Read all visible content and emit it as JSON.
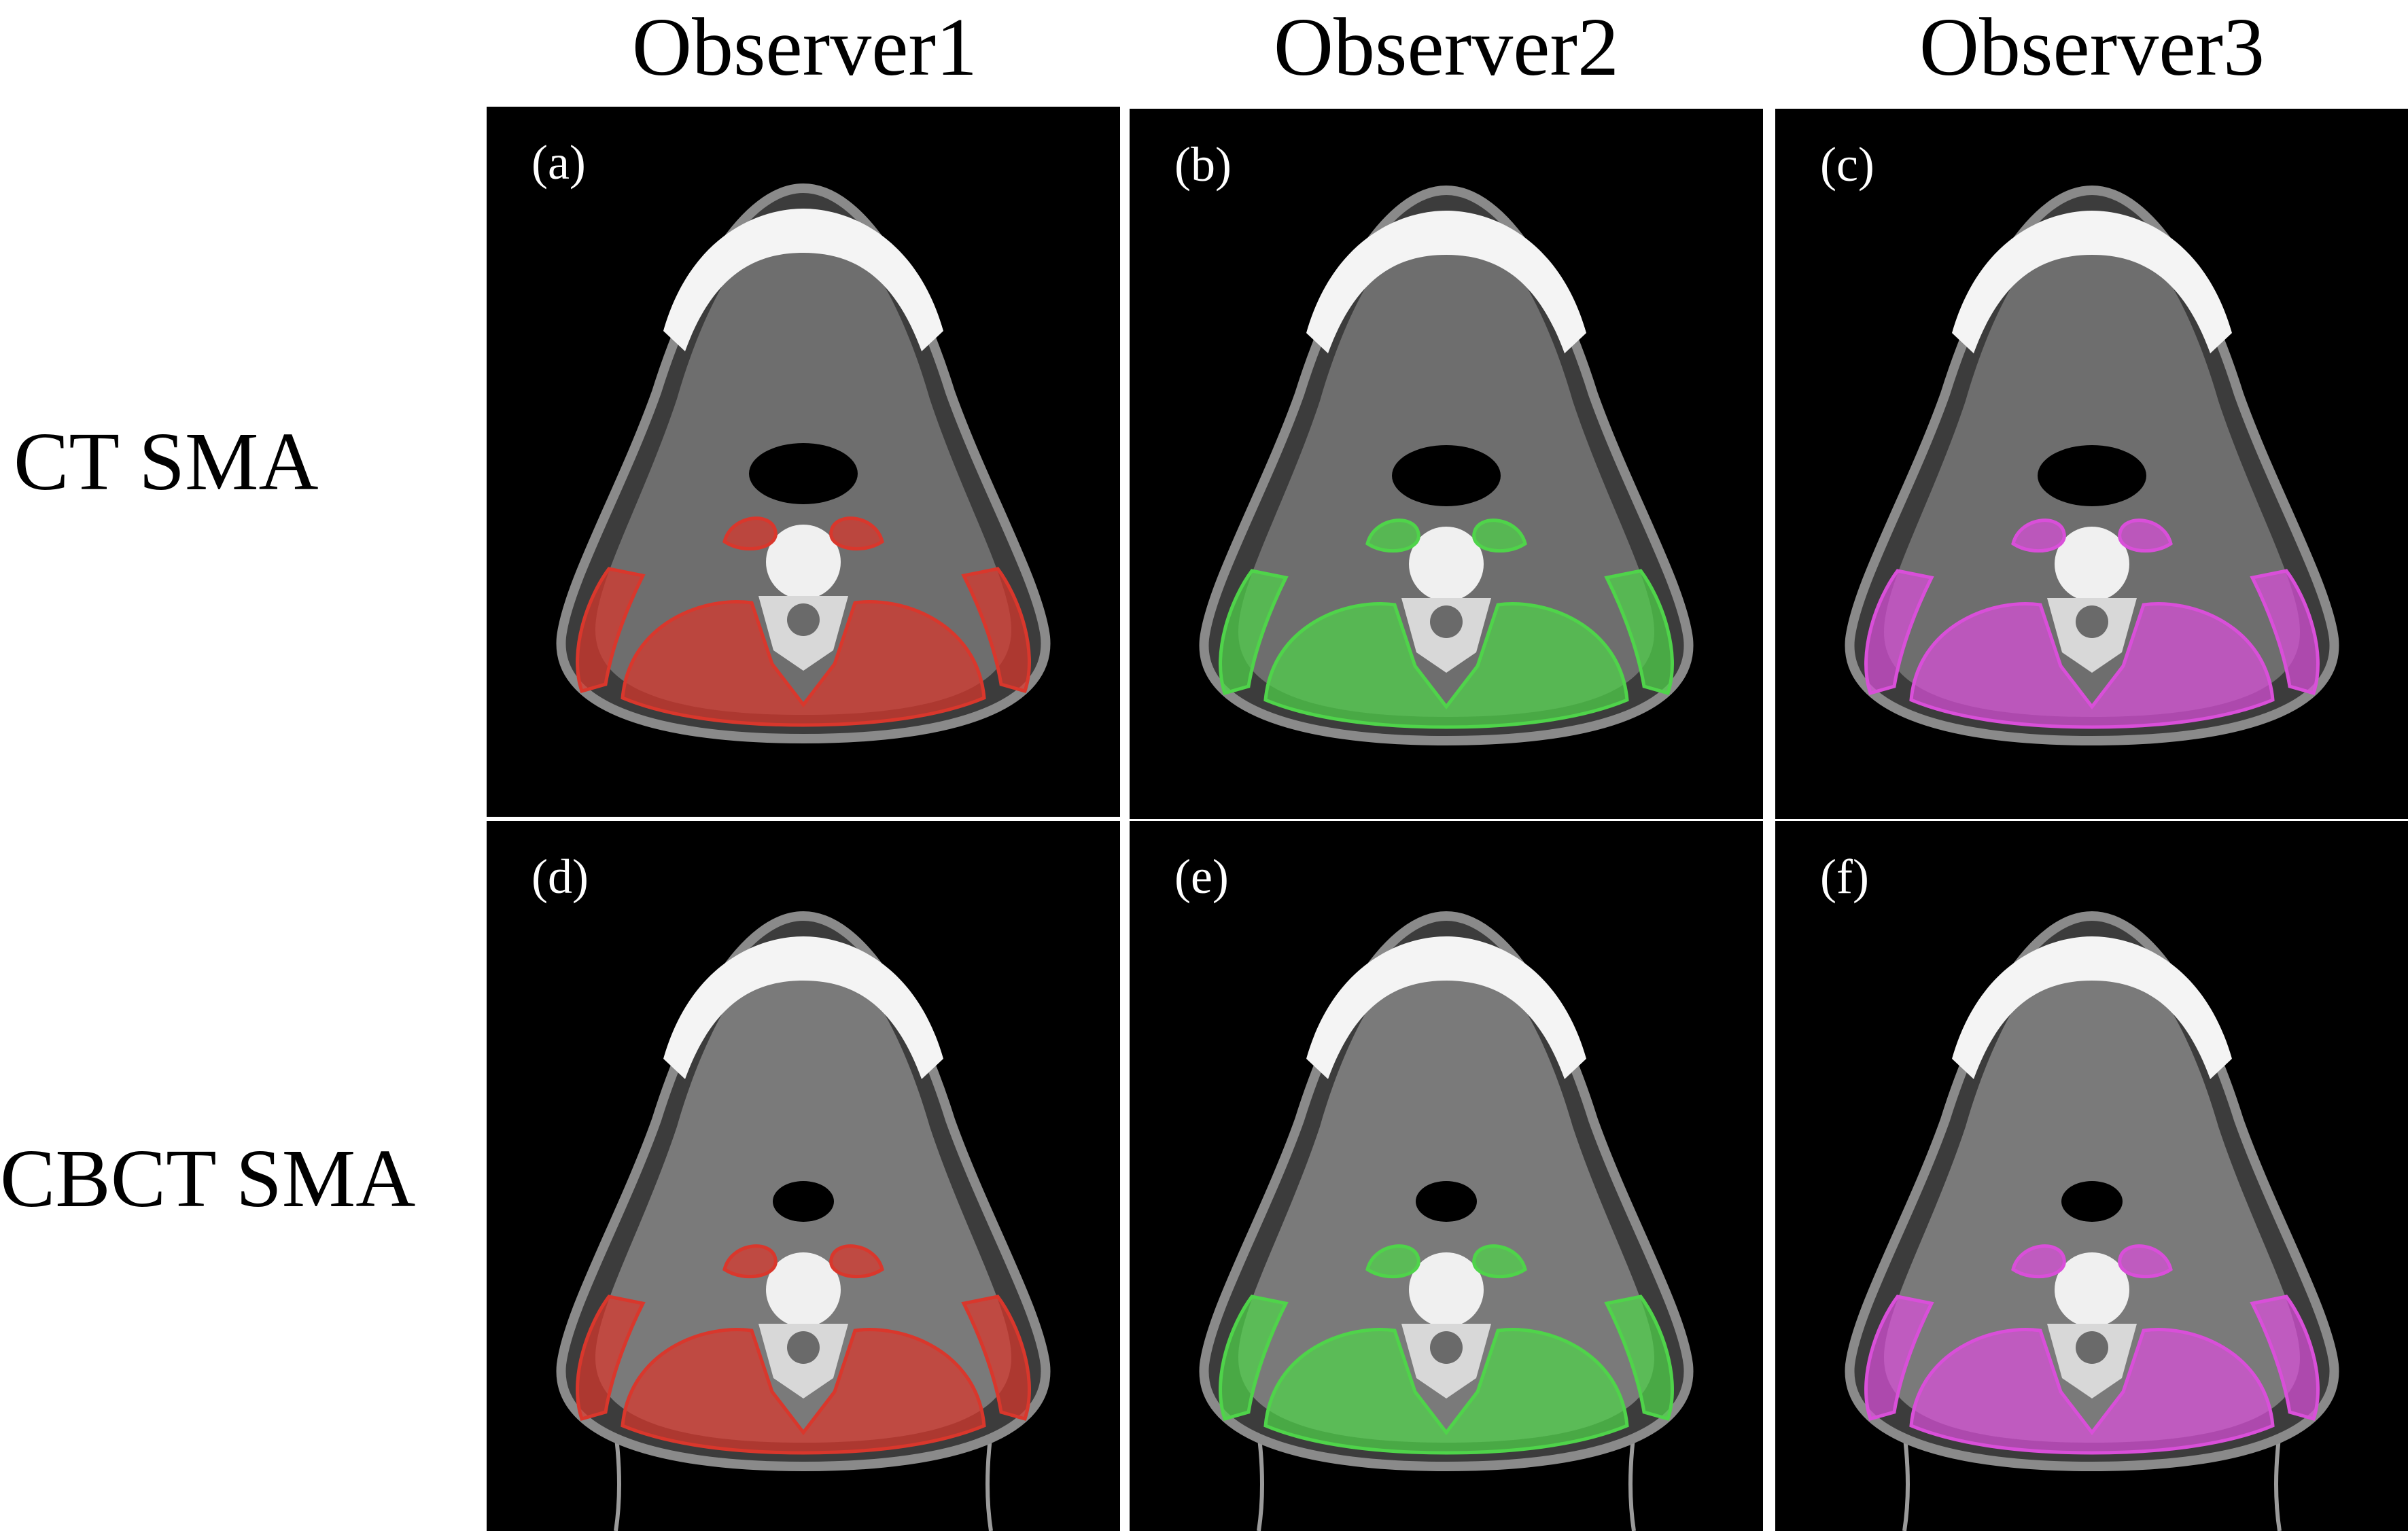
{
  "columns": [
    "Observer1",
    "Observer2",
    "Observer3"
  ],
  "rows": [
    "CT SMA",
    "CBCT SMA"
  ],
  "panels": [
    {
      "label": "(a)",
      "observer": "Observer1",
      "modality": "CT SMA"
    },
    {
      "label": "(b)",
      "observer": "Observer2",
      "modality": "CT SMA"
    },
    {
      "label": "(c)",
      "observer": "Observer3",
      "modality": "CT SMA"
    },
    {
      "label": "(d)",
      "observer": "Observer1",
      "modality": "CBCT SMA"
    },
    {
      "label": "(e)",
      "observer": "Observer2",
      "modality": "CBCT SMA"
    },
    {
      "label": "(f)",
      "observer": "Observer3",
      "modality": "CBCT SMA"
    }
  ],
  "colors": {
    "observer1": "#d9372c",
    "observer2": "#4fd44a",
    "observer3": "#d94fd9",
    "background": "#000000"
  }
}
